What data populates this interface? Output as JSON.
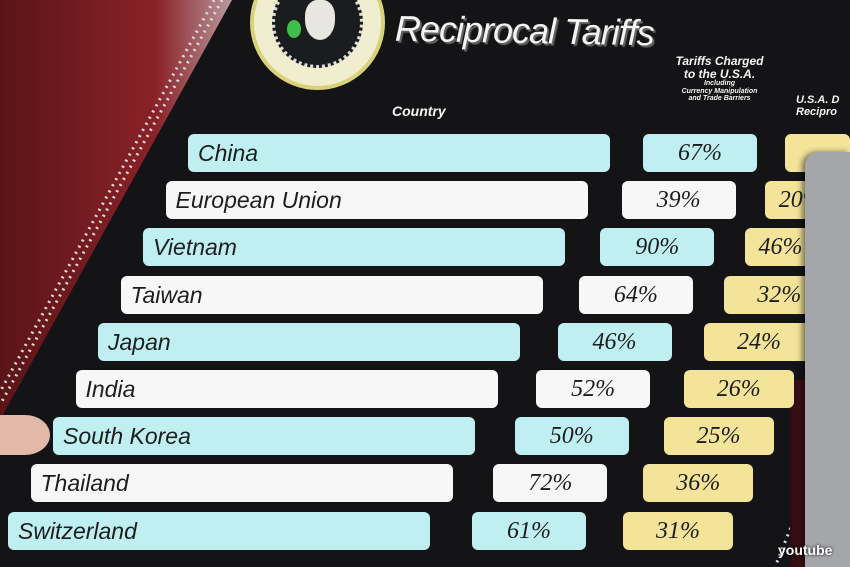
{
  "title": "Reciprocal Tariffs",
  "headers": {
    "country": "Country",
    "charged_line1": "Tariffs Charged",
    "charged_line2": "to the U.S.A.",
    "charged_line3": "Including",
    "charged_line4": "Currency Manipulation",
    "charged_line5": "and Trade Barriers",
    "usa_line1": "U.S.A. D",
    "usa_line2": "Recipro"
  },
  "rows": [
    {
      "country": "China",
      "charged": "67%",
      "reciprocal": ""
    },
    {
      "country": "European Union",
      "charged": "39%",
      "reciprocal": "20%"
    },
    {
      "country": "Vietnam",
      "charged": "90%",
      "reciprocal": "46%"
    },
    {
      "country": "Taiwan",
      "charged": "64%",
      "reciprocal": "32%"
    },
    {
      "country": "Japan",
      "charged": "46%",
      "reciprocal": "24%"
    },
    {
      "country": "India",
      "charged": "52%",
      "reciprocal": "26%"
    },
    {
      "country": "South Korea",
      "charged": "50%",
      "reciprocal": "25%"
    },
    {
      "country": "Thailand",
      "charged": "72%",
      "reciprocal": "36%"
    },
    {
      "country": "Switzerland",
      "charged": "61%",
      "reciprocal": "31%"
    }
  ],
  "watermark": "youtube",
  "colors": {
    "board": "#141416",
    "teal_row": "#bfeff0",
    "white_row": "#f7f7f7",
    "reciprocal_cell": "#f3e49a"
  }
}
